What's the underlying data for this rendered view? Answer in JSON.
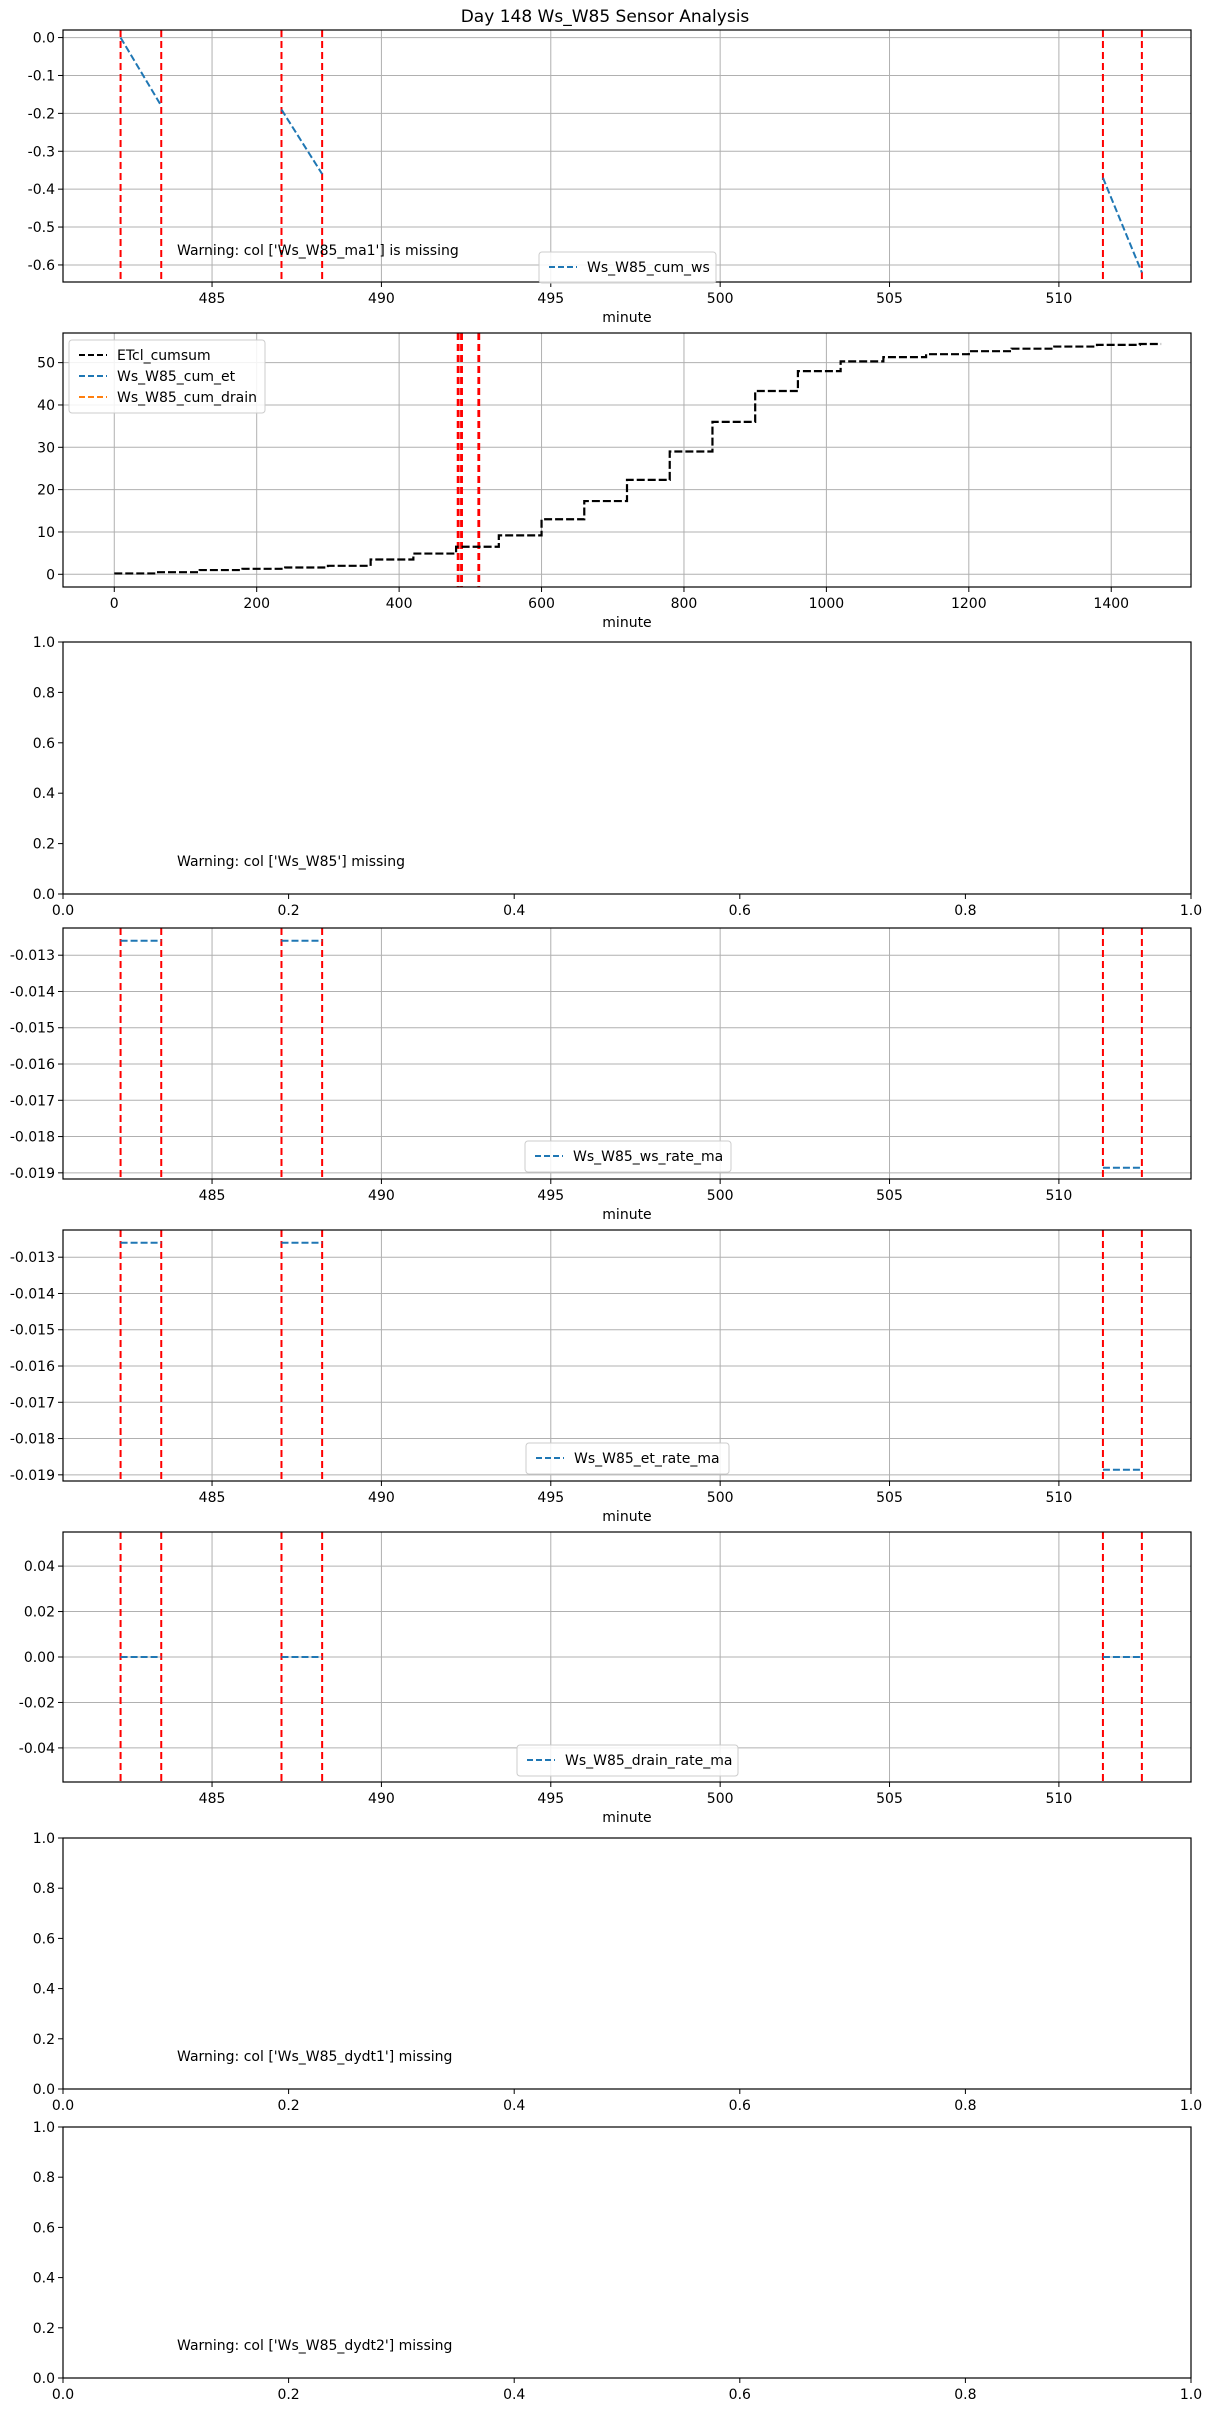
{
  "figure": {
    "title": "Day 148 Ws_W85 Sensor Analysis"
  },
  "chart_data": [
    {
      "id": "p1",
      "type": "line",
      "title": "",
      "xlabel": "minute",
      "ylabel": "",
      "xlim": [
        480.6,
        513.9
      ],
      "ylim": [
        -0.645,
        0.02
      ],
      "grid": true,
      "legend_loc": "lower center",
      "xticks": [
        485,
        490,
        495,
        500,
        505,
        510
      ],
      "yticks": [
        0.0,
        -0.1,
        -0.2,
        -0.3,
        -0.4,
        -0.5,
        -0.6
      ],
      "ytick_labels": [
        "0.0",
        "-0.1",
        "-0.2",
        "-0.3",
        "-0.4",
        "-0.5",
        "-0.6"
      ],
      "vlines": [
        482.3,
        483.5,
        487.05,
        488.25,
        511.3,
        512.45
      ],
      "series": [
        {
          "name": "Ws_W85_cum_ws",
          "color": "#1f77b4",
          "dash": true,
          "segments": [
            [
              [
                482.3,
                0.0
              ],
              [
                483.5,
                -0.18
              ]
            ],
            [
              [
                487.05,
                -0.19
              ],
              [
                488.25,
                -0.36
              ]
            ],
            [
              [
                511.3,
                -0.37
              ],
              [
                512.45,
                -0.62
              ]
            ]
          ]
        }
      ],
      "annotation": "Warning: col ['Ws_W85_ma1'] is missing"
    },
    {
      "id": "p2",
      "type": "line",
      "title": "",
      "xlabel": "minute",
      "ylabel": "",
      "xlim": [
        -72,
        1512
      ],
      "ylim": [
        -3,
        57
      ],
      "grid": true,
      "legend_loc": "upper left",
      "xticks": [
        0,
        200,
        400,
        600,
        800,
        1000,
        1200,
        1400
      ],
      "yticks": [
        0,
        10,
        20,
        30,
        40,
        50
      ],
      "ytick_labels": [
        "0",
        "10",
        "20",
        "30",
        "40",
        "50"
      ],
      "vlines": [
        482.3,
        483.5,
        487.05,
        488.25,
        511.3,
        512.45
      ],
      "step_series": [
        {
          "name": "ETcl_cumsum",
          "color": "#000000",
          "dash": true,
          "x": [
            0,
            60,
            120,
            180,
            240,
            300,
            360,
            420,
            480,
            540,
            600,
            660,
            720,
            780,
            840,
            900,
            960,
            1020,
            1080,
            1140,
            1200,
            1260,
            1320,
            1380,
            1440
          ],
          "y": [
            0.2,
            0.5,
            1.0,
            1.3,
            1.6,
            2.0,
            3.5,
            4.9,
            6.5,
            9.2,
            13.0,
            17.3,
            22.3,
            29.0,
            36.0,
            43.3,
            48.0,
            50.3,
            51.3,
            52.0,
            52.7,
            53.3,
            53.8,
            54.2,
            54.4
          ]
        }
      ],
      "series": [
        {
          "name": "Ws_W85_cum_et",
          "color": "#1f77b4",
          "dash": true,
          "segments": []
        },
        {
          "name": "Ws_W85_cum_drain",
          "color": "#ff7f0e",
          "dash": true,
          "segments": []
        }
      ]
    },
    {
      "id": "p3",
      "type": "line",
      "title": "",
      "xlabel": "",
      "ylabel": "",
      "xlim": [
        0,
        1
      ],
      "ylim": [
        0,
        1
      ],
      "grid": false,
      "xticks": [
        0.0,
        0.2,
        0.4,
        0.6,
        0.8,
        1.0
      ],
      "xtick_labels": [
        "0.0",
        "0.2",
        "0.4",
        "0.6",
        "0.8",
        "1.0"
      ],
      "yticks": [
        0.0,
        0.2,
        0.4,
        0.6,
        0.8,
        1.0
      ],
      "ytick_labels": [
        "0.0",
        "0.2",
        "0.4",
        "0.6",
        "0.8",
        "1.0"
      ],
      "vlines": [],
      "series": [],
      "annotation": "Warning: col ['Ws_W85'] missing"
    },
    {
      "id": "p4",
      "type": "line",
      "title": "",
      "xlabel": "minute",
      "ylabel": "",
      "xlim": [
        480.6,
        513.9
      ],
      "ylim": [
        -0.01917,
        -0.01225
      ],
      "grid": true,
      "legend_loc": "lower center",
      "xticks": [
        485,
        490,
        495,
        500,
        505,
        510
      ],
      "yticks": [
        -0.013,
        -0.014,
        -0.015,
        -0.016,
        -0.017,
        -0.018,
        -0.019
      ],
      "ytick_labels": [
        "-0.013",
        "-0.014",
        "-0.015",
        "-0.016",
        "-0.017",
        "-0.018",
        "-0.019"
      ],
      "vlines": [
        482.3,
        483.5,
        487.05,
        488.25,
        511.3,
        512.45
      ],
      "series": [
        {
          "name": "Ws_W85_ws_rate_ma",
          "color": "#1f77b4",
          "dash": true,
          "segments": [
            [
              [
                482.3,
                -0.0126
              ],
              [
                483.5,
                -0.0126
              ]
            ],
            [
              [
                487.05,
                -0.0126
              ],
              [
                488.25,
                -0.0126
              ]
            ],
            [
              [
                511.3,
                -0.01886
              ],
              [
                512.45,
                -0.01886
              ]
            ]
          ]
        }
      ]
    },
    {
      "id": "p5",
      "type": "line",
      "title": "",
      "xlabel": "minute",
      "ylabel": "",
      "xlim": [
        480.6,
        513.9
      ],
      "ylim": [
        -0.01917,
        -0.01225
      ],
      "grid": true,
      "legend_loc": "lower center",
      "xticks": [
        485,
        490,
        495,
        500,
        505,
        510
      ],
      "yticks": [
        -0.013,
        -0.014,
        -0.015,
        -0.016,
        -0.017,
        -0.018,
        -0.019
      ],
      "ytick_labels": [
        "-0.013",
        "-0.014",
        "-0.015",
        "-0.016",
        "-0.017",
        "-0.018",
        "-0.019"
      ],
      "vlines": [
        482.3,
        483.5,
        487.05,
        488.25,
        511.3,
        512.45
      ],
      "series": [
        {
          "name": "Ws_W85_et_rate_ma",
          "color": "#1f77b4",
          "dash": true,
          "segments": [
            [
              [
                482.3,
                -0.0126
              ],
              [
                483.5,
                -0.0126
              ]
            ],
            [
              [
                487.05,
                -0.0126
              ],
              [
                488.25,
                -0.0126
              ]
            ],
            [
              [
                511.3,
                -0.01886
              ],
              [
                512.45,
                -0.01886
              ]
            ]
          ]
        }
      ]
    },
    {
      "id": "p6",
      "type": "line",
      "title": "",
      "xlabel": "minute",
      "ylabel": "",
      "xlim": [
        480.6,
        513.9
      ],
      "ylim": [
        -0.055,
        0.055
      ],
      "grid": true,
      "legend_loc": "lower center",
      "xticks": [
        485,
        490,
        495,
        500,
        505,
        510
      ],
      "yticks": [
        0.04,
        0.02,
        0.0,
        -0.02,
        -0.04
      ],
      "ytick_labels": [
        "0.04",
        "0.02",
        "0.00",
        "-0.02",
        "-0.04"
      ],
      "vlines": [
        482.3,
        483.5,
        487.05,
        488.25,
        511.3,
        512.45
      ],
      "series": [
        {
          "name": "Ws_W85_drain_rate_ma",
          "color": "#1f77b4",
          "dash": true,
          "segments": [
            [
              [
                482.3,
                0.0
              ],
              [
                483.5,
                0.0
              ]
            ],
            [
              [
                487.05,
                0.0
              ],
              [
                488.25,
                0.0
              ]
            ],
            [
              [
                511.3,
                0.0
              ],
              [
                512.45,
                0.0
              ]
            ]
          ]
        }
      ]
    },
    {
      "id": "p7",
      "type": "line",
      "title": "",
      "xlabel": "",
      "ylabel": "",
      "xlim": [
        0,
        1
      ],
      "ylim": [
        0,
        1
      ],
      "grid": false,
      "xticks": [
        0.0,
        0.2,
        0.4,
        0.6,
        0.8,
        1.0
      ],
      "xtick_labels": [
        "0.0",
        "0.2",
        "0.4",
        "0.6",
        "0.8",
        "1.0"
      ],
      "yticks": [
        0.0,
        0.2,
        0.4,
        0.6,
        0.8,
        1.0
      ],
      "ytick_labels": [
        "0.0",
        "0.2",
        "0.4",
        "0.6",
        "0.8",
        "1.0"
      ],
      "vlines": [],
      "series": [],
      "annotation": "Warning: col ['Ws_W85_dydt1'] missing"
    },
    {
      "id": "p8",
      "type": "line",
      "title": "",
      "xlabel": "",
      "ylabel": "",
      "xlim": [
        0,
        1
      ],
      "ylim": [
        0,
        1
      ],
      "grid": false,
      "xticks": [
        0.0,
        0.2,
        0.4,
        0.6,
        0.8,
        1.0
      ],
      "xtick_labels": [
        "0.0",
        "0.2",
        "0.4",
        "0.6",
        "0.8",
        "1.0"
      ],
      "yticks": [
        0.0,
        0.2,
        0.4,
        0.6,
        0.8,
        1.0
      ],
      "ytick_labels": [
        "0.0",
        "0.2",
        "0.4",
        "0.6",
        "0.8",
        "1.0"
      ],
      "vlines": [],
      "series": [],
      "annotation": "Warning: col ['Ws_W85_dydt2'] missing"
    }
  ]
}
